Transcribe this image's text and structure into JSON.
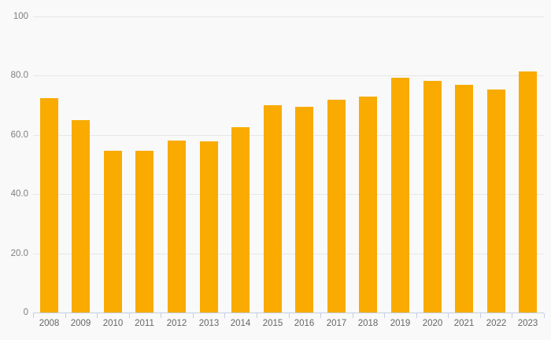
{
  "chart_data": {
    "type": "bar",
    "title": "",
    "xlabel": "",
    "ylabel": "",
    "categories": [
      "2008",
      "2009",
      "2010",
      "2011",
      "2012",
      "2013",
      "2014",
      "2015",
      "2016",
      "2017",
      "2018",
      "2019",
      "2020",
      "2021",
      "2022",
      "2023"
    ],
    "values": [
      72.4,
      65.0,
      54.6,
      54.6,
      58.2,
      57.8,
      62.6,
      70.0,
      69.4,
      71.8,
      72.9,
      79.4,
      78.2,
      76.9,
      75.4,
      81.5
    ],
    "ylim": [
      0,
      100
    ],
    "yticks": [
      0,
      20,
      40,
      60,
      80,
      100
    ],
    "ytick_labels": [
      "0",
      "20.0",
      "40.0",
      "60.0",
      "80.0",
      "100"
    ],
    "grid": "horizontal",
    "legend": "none"
  },
  "colors": {
    "background": "#f9f9f9",
    "bar": "#F9AB00",
    "gridline": "#e7e7e7",
    "axis_line": "#c4cfe1",
    "y_label_text": "#7f7f7f",
    "x_label_text": "#666666"
  }
}
